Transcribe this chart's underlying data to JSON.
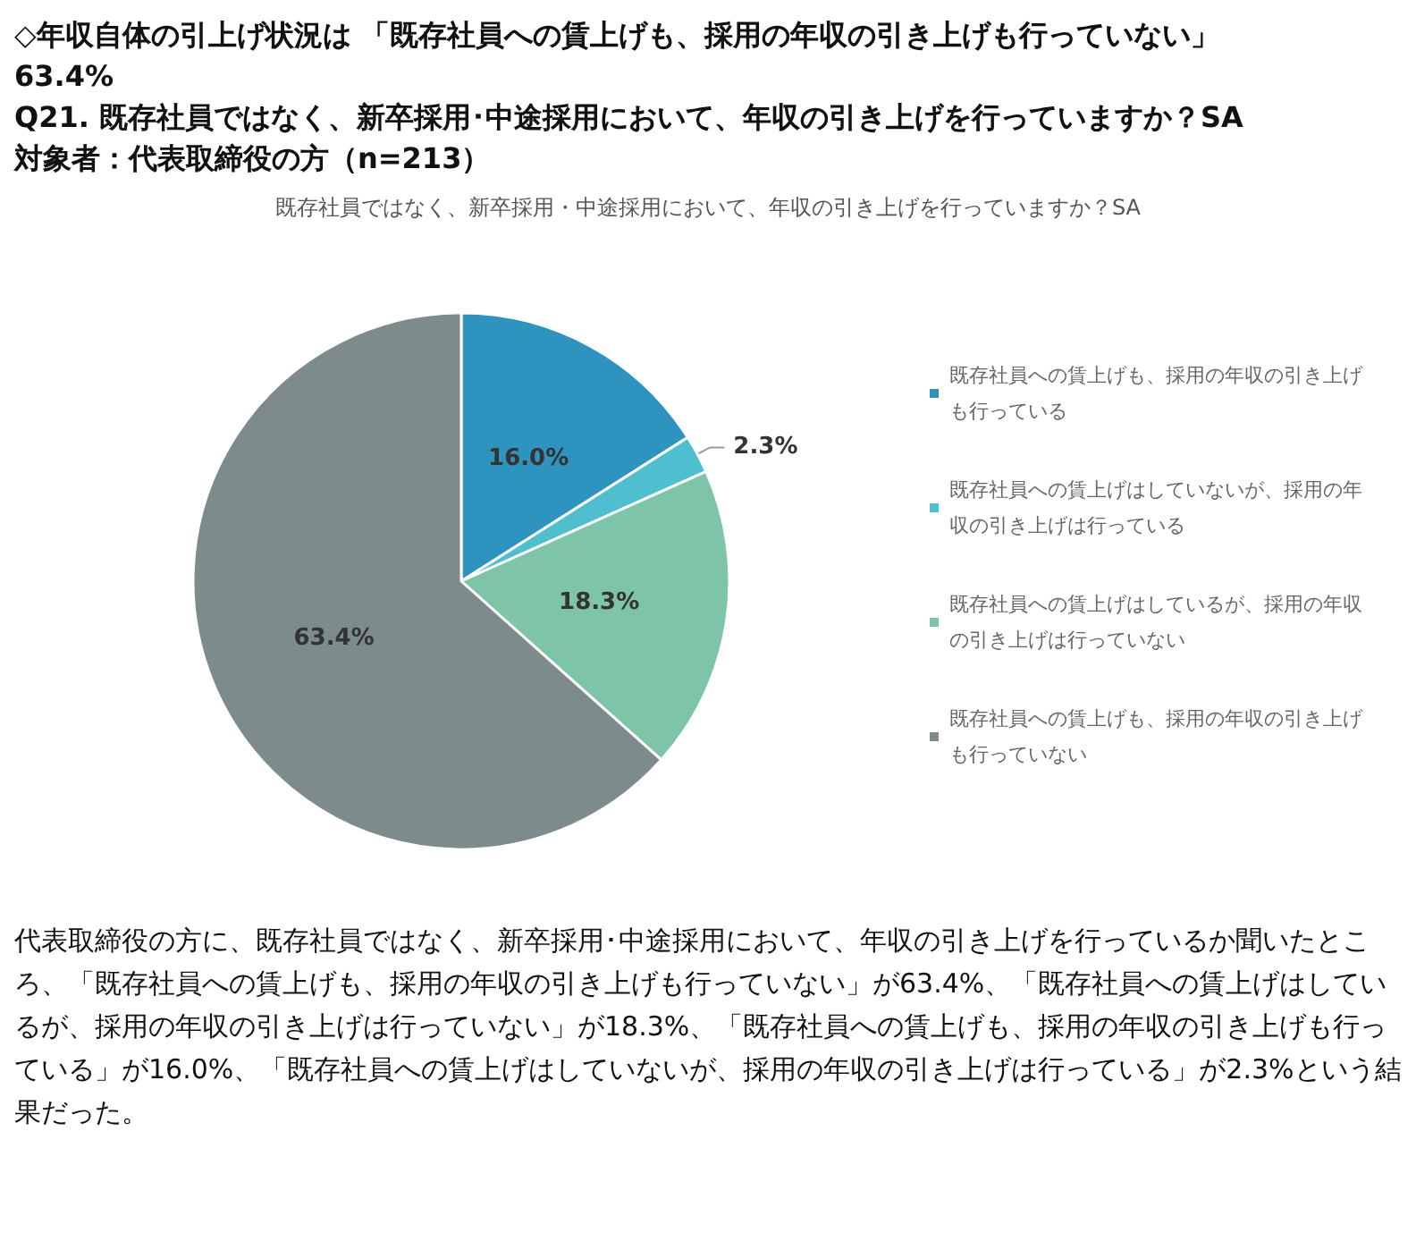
{
  "chart_data": {
    "type": "pie",
    "title": "◇年収自体の引上げ状況は 「既存社員への賃上げも、採用の年収の引き上げも行っていない」\n63.4%\nQ21. 既存社員ではなく、新卒採用･中途採用において、年収の引き上げを行っていますか？SA\n対象者：代表取締役の方（n=213）",
    "subtitle": "既存社員ではなく、新卒採用・中途採用において、年収の引き上げを行っていますか？SA",
    "categories": [
      "既存社員への賃上げも、採用の年収の引き上げも行っている",
      "既存社員への賃上げはしていないが、採用の年収の引き上げは行っている",
      "既存社員への賃上げはしているが、採用の年収の引き上げは行っていない",
      "既存社員への賃上げも、採用の年収の引き上げも行っていない"
    ],
    "values": [
      16.0,
      2.3,
      18.3,
      63.4
    ],
    "value_labels": [
      "16.0%",
      "2.3%",
      "18.3%",
      "63.4%"
    ],
    "colors": [
      "#2f93c0",
      "#4fbfcf",
      "#7ec4a9",
      "#7e8b8c"
    ],
    "legend": "right",
    "annotations": [
      "代表取締役の方に、既存社員ではなく、新卒採用･中途採用において、年収の引き上げを行っているか聞いたところ、「既存社員への賃上げも、採用の年収の引き上げも行っていない」が63.4%、「既存社員への賃上げはしているが、採用の年収の引き上げは行っていない」が18.3%、「既存社員への賃上げも、採用の年収の引き上げも行っている」が16.0%、「既存社員への賃上げはしていないが、採用の年収の引き上げは行っている」が2.3%という結果だった。"
    ]
  }
}
